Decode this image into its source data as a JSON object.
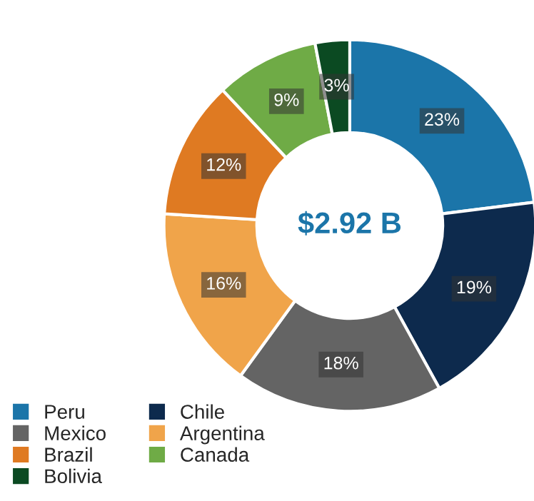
{
  "chart_data": {
    "type": "donut",
    "categories": [
      "Peru",
      "Chile",
      "Mexico",
      "Argentina",
      "Brazil",
      "Canada",
      "Bolivia"
    ],
    "values": [
      23,
      19,
      18,
      16,
      12,
      9,
      3
    ],
    "value_labels": [
      "23%",
      "19%",
      "18%",
      "16%",
      "12%",
      "9%",
      "3%"
    ],
    "colors": [
      "#1b75a9",
      "#0d2a4d",
      "#646464",
      "#f0a44a",
      "#df7a22",
      "#6fab46",
      "#0b4a22"
    ],
    "annotations": [
      "$2.92 B"
    ],
    "legend": "bottom left"
  }
}
